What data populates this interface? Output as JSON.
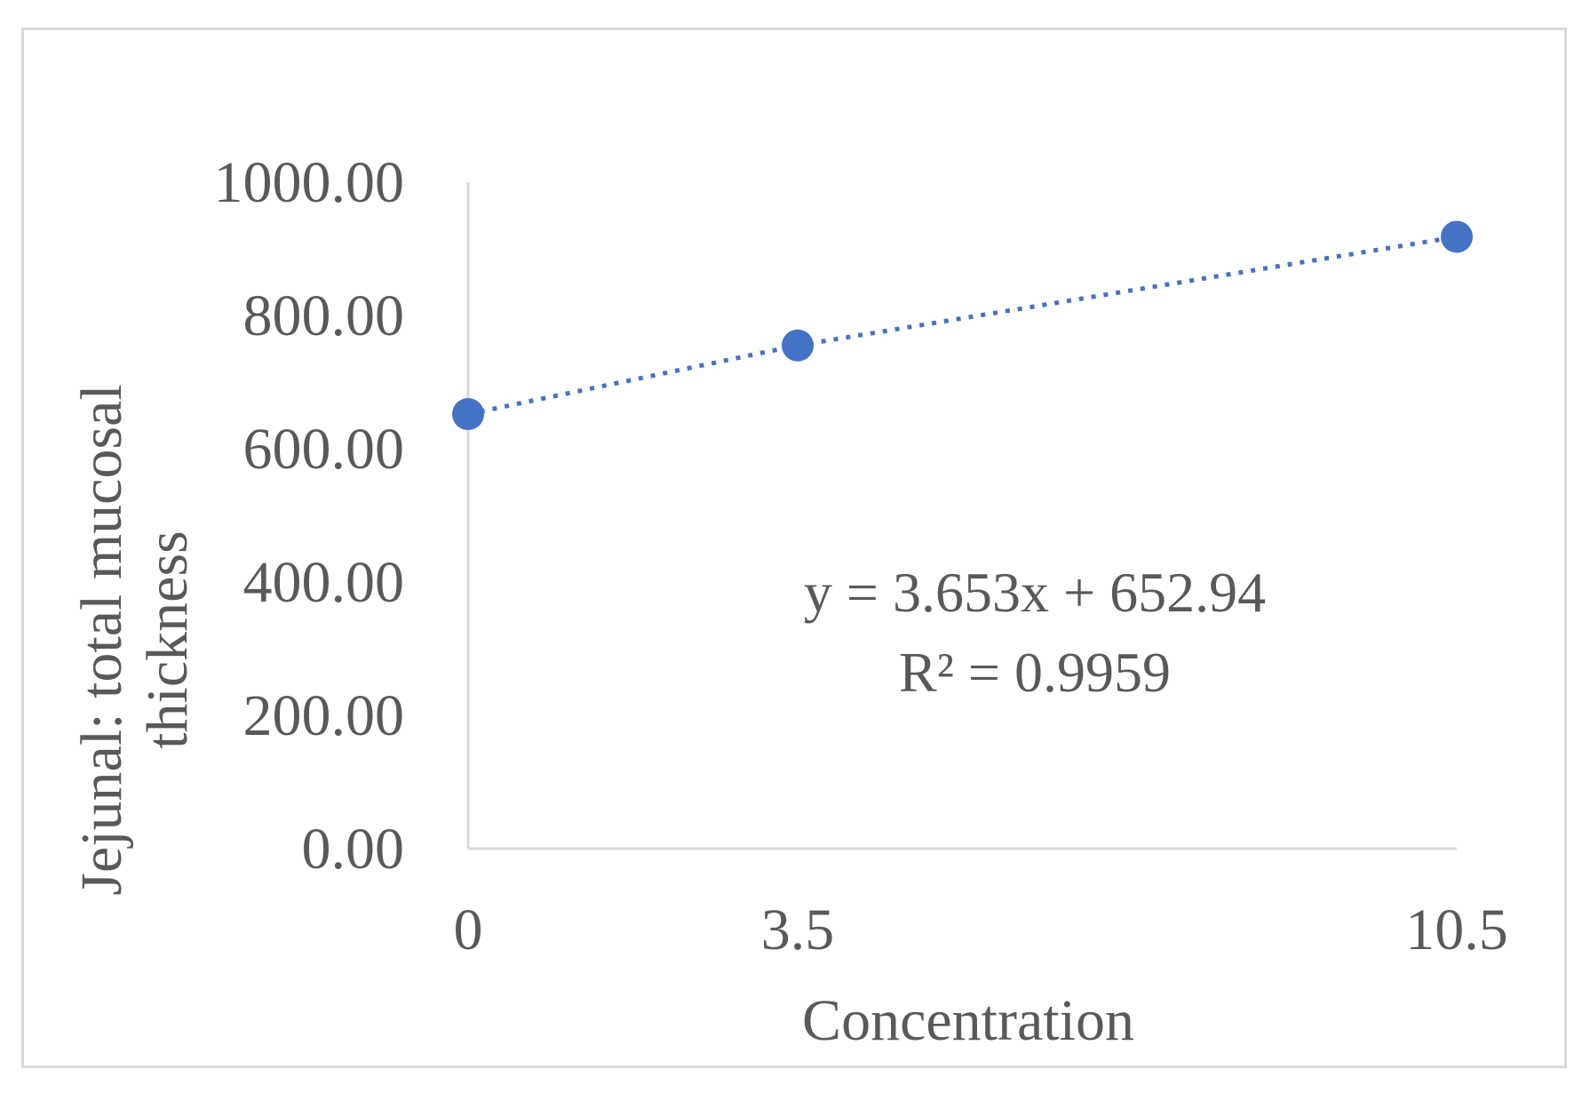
{
  "chart_data": {
    "type": "scatter",
    "title": "",
    "xlabel": "Concentration",
    "ylabel_lines": [
      "Jejunal: total mucosal",
      "thickness"
    ],
    "x_tick_labels": [
      "0",
      "3.5",
      "10.5"
    ],
    "y_tick_labels": [
      "0.00",
      "200.00",
      "400.00",
      "600.00",
      "800.00",
      "1000.00"
    ],
    "ylim": [
      0,
      1000
    ],
    "x_axis": "category",
    "grid": false,
    "legend": "none",
    "points": [
      {
        "x": "0",
        "y": 652
      },
      {
        "x": "3.5",
        "y": 755
      },
      {
        "x": "10.5",
        "y": 918
      }
    ],
    "trendline": {
      "style": "dotted",
      "type": "linear"
    },
    "equation_lines": [
      "y = 3.653x  + 652.94",
      "R² = 0.9959"
    ],
    "colors": {
      "marker": "#4472C4",
      "axis": "#d9d9d9",
      "text": "#595959",
      "frame": "#d9d9d9"
    }
  }
}
